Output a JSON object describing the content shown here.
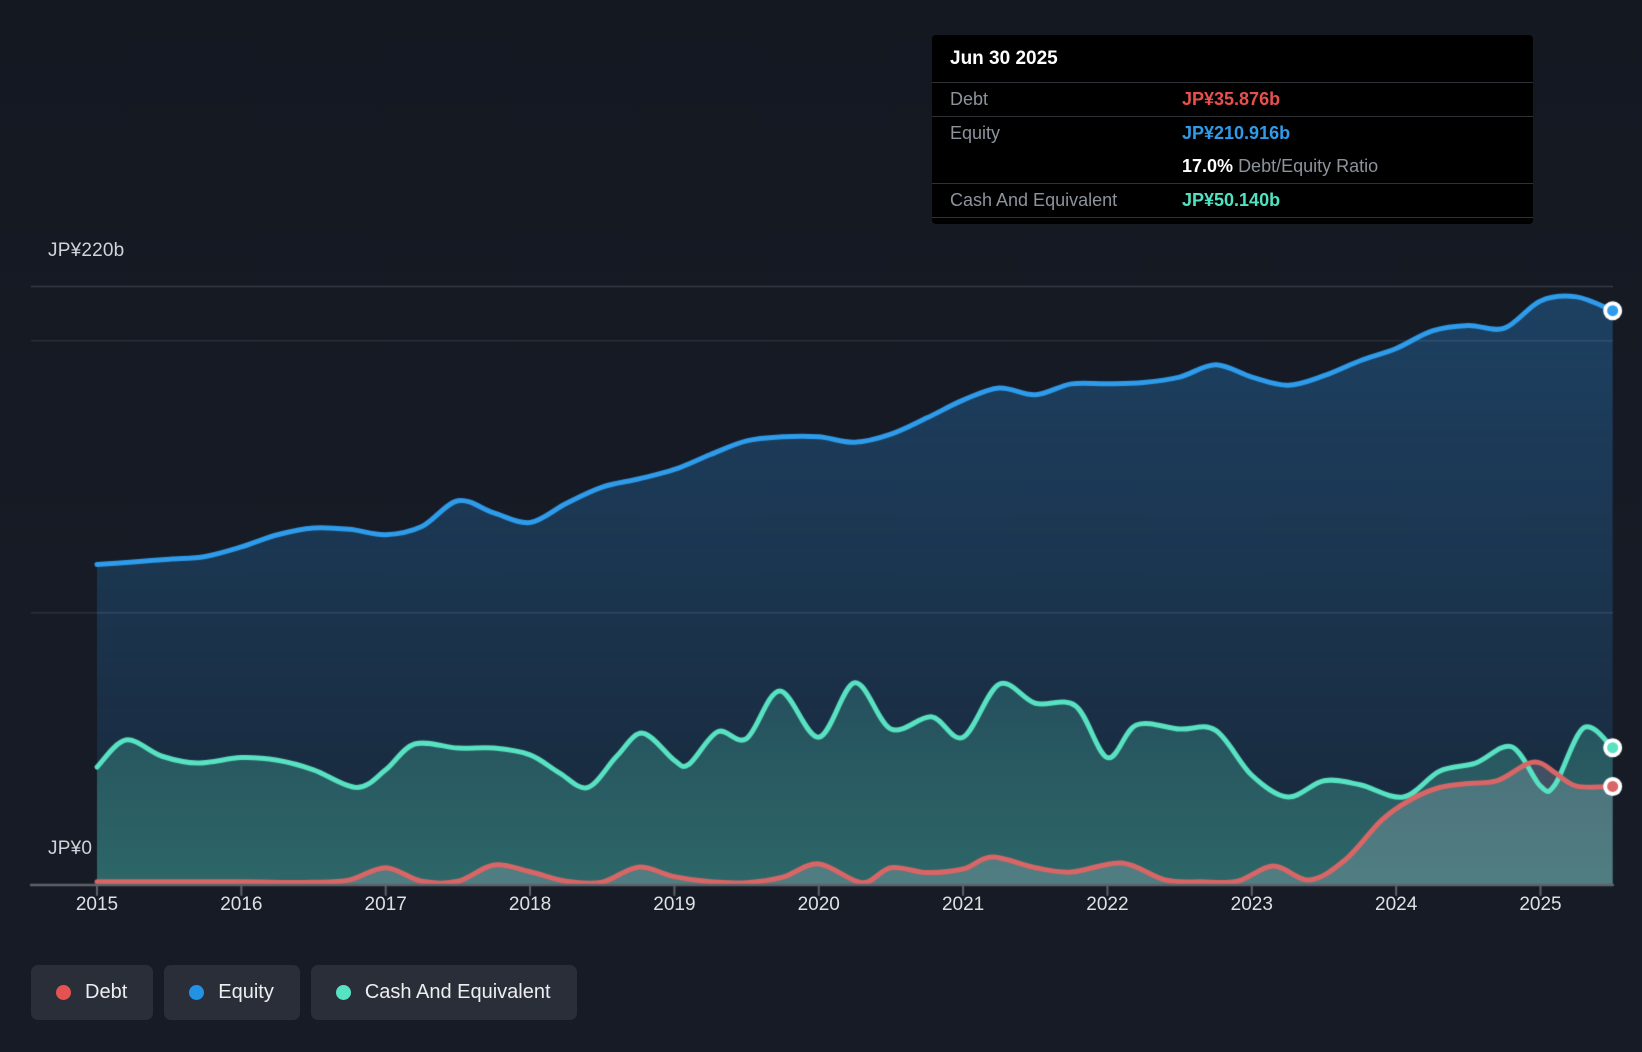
{
  "tooltip": {
    "date": "Jun 30 2025",
    "debt_label": "Debt",
    "debt_value": "JP¥35.876b",
    "equity_label": "Equity",
    "equity_value": "JP¥210.916b",
    "ratio_value": "17.0%",
    "ratio_label": "Debt/Equity Ratio",
    "cash_label": "Cash And Equivalent",
    "cash_value": "JP¥50.140b"
  },
  "axis": {
    "y_top_label": "JP¥220b",
    "y_zero_label": "JP¥0",
    "x_ticks": [
      "2015",
      "2016",
      "2017",
      "2018",
      "2019",
      "2020",
      "2021",
      "2022",
      "2023",
      "2024",
      "2025"
    ]
  },
  "legend": {
    "items": [
      {
        "label": "Debt",
        "color": "#e25352"
      },
      {
        "label": "Equity",
        "color": "#2492e4"
      },
      {
        "label": "Cash And Equivalent",
        "color": "#55e3c4"
      }
    ]
  },
  "colors": {
    "equity_line": "#2e9ceb",
    "cash_line": "#58e2c2",
    "debt_line": "#d96666",
    "axis_line": "#5e636b",
    "grid": "rgba(255,255,255,0.12)"
  },
  "chart_data": {
    "type": "area",
    "x_unit": "decimal_year",
    "y_unit": "JP¥ billions",
    "x_range": [
      2015,
      2025.5
    ],
    "ylim": [
      0,
      225
    ],
    "gridlines_y_values": [
      0,
      100,
      200,
      220
    ],
    "grid": true,
    "legend_position": "bottom-left",
    "series": [
      {
        "name": "Equity",
        "color": "#2e9ceb",
        "end_label": "JP¥210.916b",
        "points": [
          [
            2015.0,
            117.5
          ],
          [
            2015.25,
            118.5
          ],
          [
            2015.5,
            119.5
          ],
          [
            2015.75,
            120.5
          ],
          [
            2016.0,
            124
          ],
          [
            2016.25,
            128.5
          ],
          [
            2016.5,
            131
          ],
          [
            2016.75,
            130.5
          ],
          [
            2017.0,
            128.5
          ],
          [
            2017.25,
            131.5
          ],
          [
            2017.5,
            141
          ],
          [
            2017.75,
            136.5
          ],
          [
            2018.0,
            133
          ],
          [
            2018.25,
            140
          ],
          [
            2018.5,
            146
          ],
          [
            2018.75,
            149
          ],
          [
            2019.0,
            152.5
          ],
          [
            2019.25,
            158
          ],
          [
            2019.5,
            163
          ],
          [
            2019.75,
            164.5
          ],
          [
            2020.0,
            164.5
          ],
          [
            2020.25,
            162.5
          ],
          [
            2020.5,
            165.5
          ],
          [
            2020.75,
            171.5
          ],
          [
            2021.0,
            178
          ],
          [
            2021.25,
            182.5
          ],
          [
            2021.5,
            180
          ],
          [
            2021.75,
            184
          ],
          [
            2022.0,
            184
          ],
          [
            2022.25,
            184.5
          ],
          [
            2022.5,
            186.5
          ],
          [
            2022.75,
            191
          ],
          [
            2023.0,
            186.5
          ],
          [
            2023.25,
            183.5
          ],
          [
            2023.5,
            187
          ],
          [
            2023.75,
            192.5
          ],
          [
            2024.0,
            197
          ],
          [
            2024.25,
            203.5
          ],
          [
            2024.5,
            205.5
          ],
          [
            2024.75,
            204.5
          ],
          [
            2025.0,
            214.5
          ],
          [
            2025.25,
            216
          ],
          [
            2025.5,
            210.916
          ]
        ]
      },
      {
        "name": "Cash And Equivalent",
        "color": "#58e2c2",
        "end_label": "JP¥50.140b",
        "points": [
          [
            2015.0,
            43
          ],
          [
            2015.2,
            53
          ],
          [
            2015.45,
            47
          ],
          [
            2015.7,
            44.5
          ],
          [
            2016.0,
            46.5
          ],
          [
            2016.25,
            45.5
          ],
          [
            2016.5,
            42
          ],
          [
            2016.8,
            35.5
          ],
          [
            2017.0,
            42
          ],
          [
            2017.2,
            51.5
          ],
          [
            2017.5,
            50
          ],
          [
            2017.75,
            50
          ],
          [
            2018.0,
            47.5
          ],
          [
            2018.2,
            41
          ],
          [
            2018.4,
            35.5
          ],
          [
            2018.6,
            47
          ],
          [
            2018.78,
            55.5
          ],
          [
            2019.0,
            45.5
          ],
          [
            2019.1,
            44
          ],
          [
            2019.3,
            56
          ],
          [
            2019.5,
            53.5
          ],
          [
            2019.73,
            71
          ],
          [
            2020.0,
            54
          ],
          [
            2020.25,
            74
          ],
          [
            2020.5,
            57
          ],
          [
            2020.78,
            61.5
          ],
          [
            2021.0,
            54
          ],
          [
            2021.25,
            73.5
          ],
          [
            2021.5,
            66.5
          ],
          [
            2021.78,
            65.5
          ],
          [
            2022.0,
            46.5
          ],
          [
            2022.2,
            58.5
          ],
          [
            2022.5,
            57
          ],
          [
            2022.75,
            56.5
          ],
          [
            2023.0,
            40
          ],
          [
            2023.25,
            32
          ],
          [
            2023.5,
            38
          ],
          [
            2023.75,
            36.5
          ],
          [
            2024.05,
            32
          ],
          [
            2024.3,
            41.5
          ],
          [
            2024.55,
            44.5
          ],
          [
            2024.8,
            50.5
          ],
          [
            2025.0,
            36
          ],
          [
            2025.1,
            36.5
          ],
          [
            2025.3,
            57.5
          ],
          [
            2025.5,
            50.14
          ]
        ]
      },
      {
        "name": "Debt",
        "color": "#d96666",
        "end_label": "JP¥35.876b",
        "points": [
          [
            2015.0,
            0.8
          ],
          [
            2015.5,
            0.8
          ],
          [
            2016.0,
            0.8
          ],
          [
            2016.5,
            0.6
          ],
          [
            2016.75,
            1.5
          ],
          [
            2017.0,
            6
          ],
          [
            2017.25,
            1
          ],
          [
            2017.5,
            1
          ],
          [
            2017.75,
            7
          ],
          [
            2018.0,
            4.5
          ],
          [
            2018.25,
            1
          ],
          [
            2018.5,
            0.7
          ],
          [
            2018.75,
            6.2
          ],
          [
            2019.0,
            2.7
          ],
          [
            2019.25,
            0.8
          ],
          [
            2019.5,
            0.5
          ],
          [
            2019.75,
            2.5
          ],
          [
            2020.0,
            7.4
          ],
          [
            2020.3,
            0.5
          ],
          [
            2020.5,
            6
          ],
          [
            2020.75,
            4.2
          ],
          [
            2021.0,
            5.5
          ],
          [
            2021.2,
            9.9
          ],
          [
            2021.5,
            6
          ],
          [
            2021.75,
            4.4
          ],
          [
            2022.1,
            7.7
          ],
          [
            2022.4,
            1.5
          ],
          [
            2022.65,
            0.8
          ],
          [
            2022.9,
            1
          ],
          [
            2023.15,
            6.6
          ],
          [
            2023.4,
            1.5
          ],
          [
            2023.65,
            9
          ],
          [
            2023.9,
            23.5
          ],
          [
            2024.1,
            31
          ],
          [
            2024.3,
            35.5
          ],
          [
            2024.5,
            37
          ],
          [
            2024.7,
            38
          ],
          [
            2024.9,
            44
          ],
          [
            2025.0,
            44.5
          ],
          [
            2025.1,
            41
          ],
          [
            2025.25,
            36
          ],
          [
            2025.5,
            35.876
          ]
        ]
      }
    ]
  }
}
